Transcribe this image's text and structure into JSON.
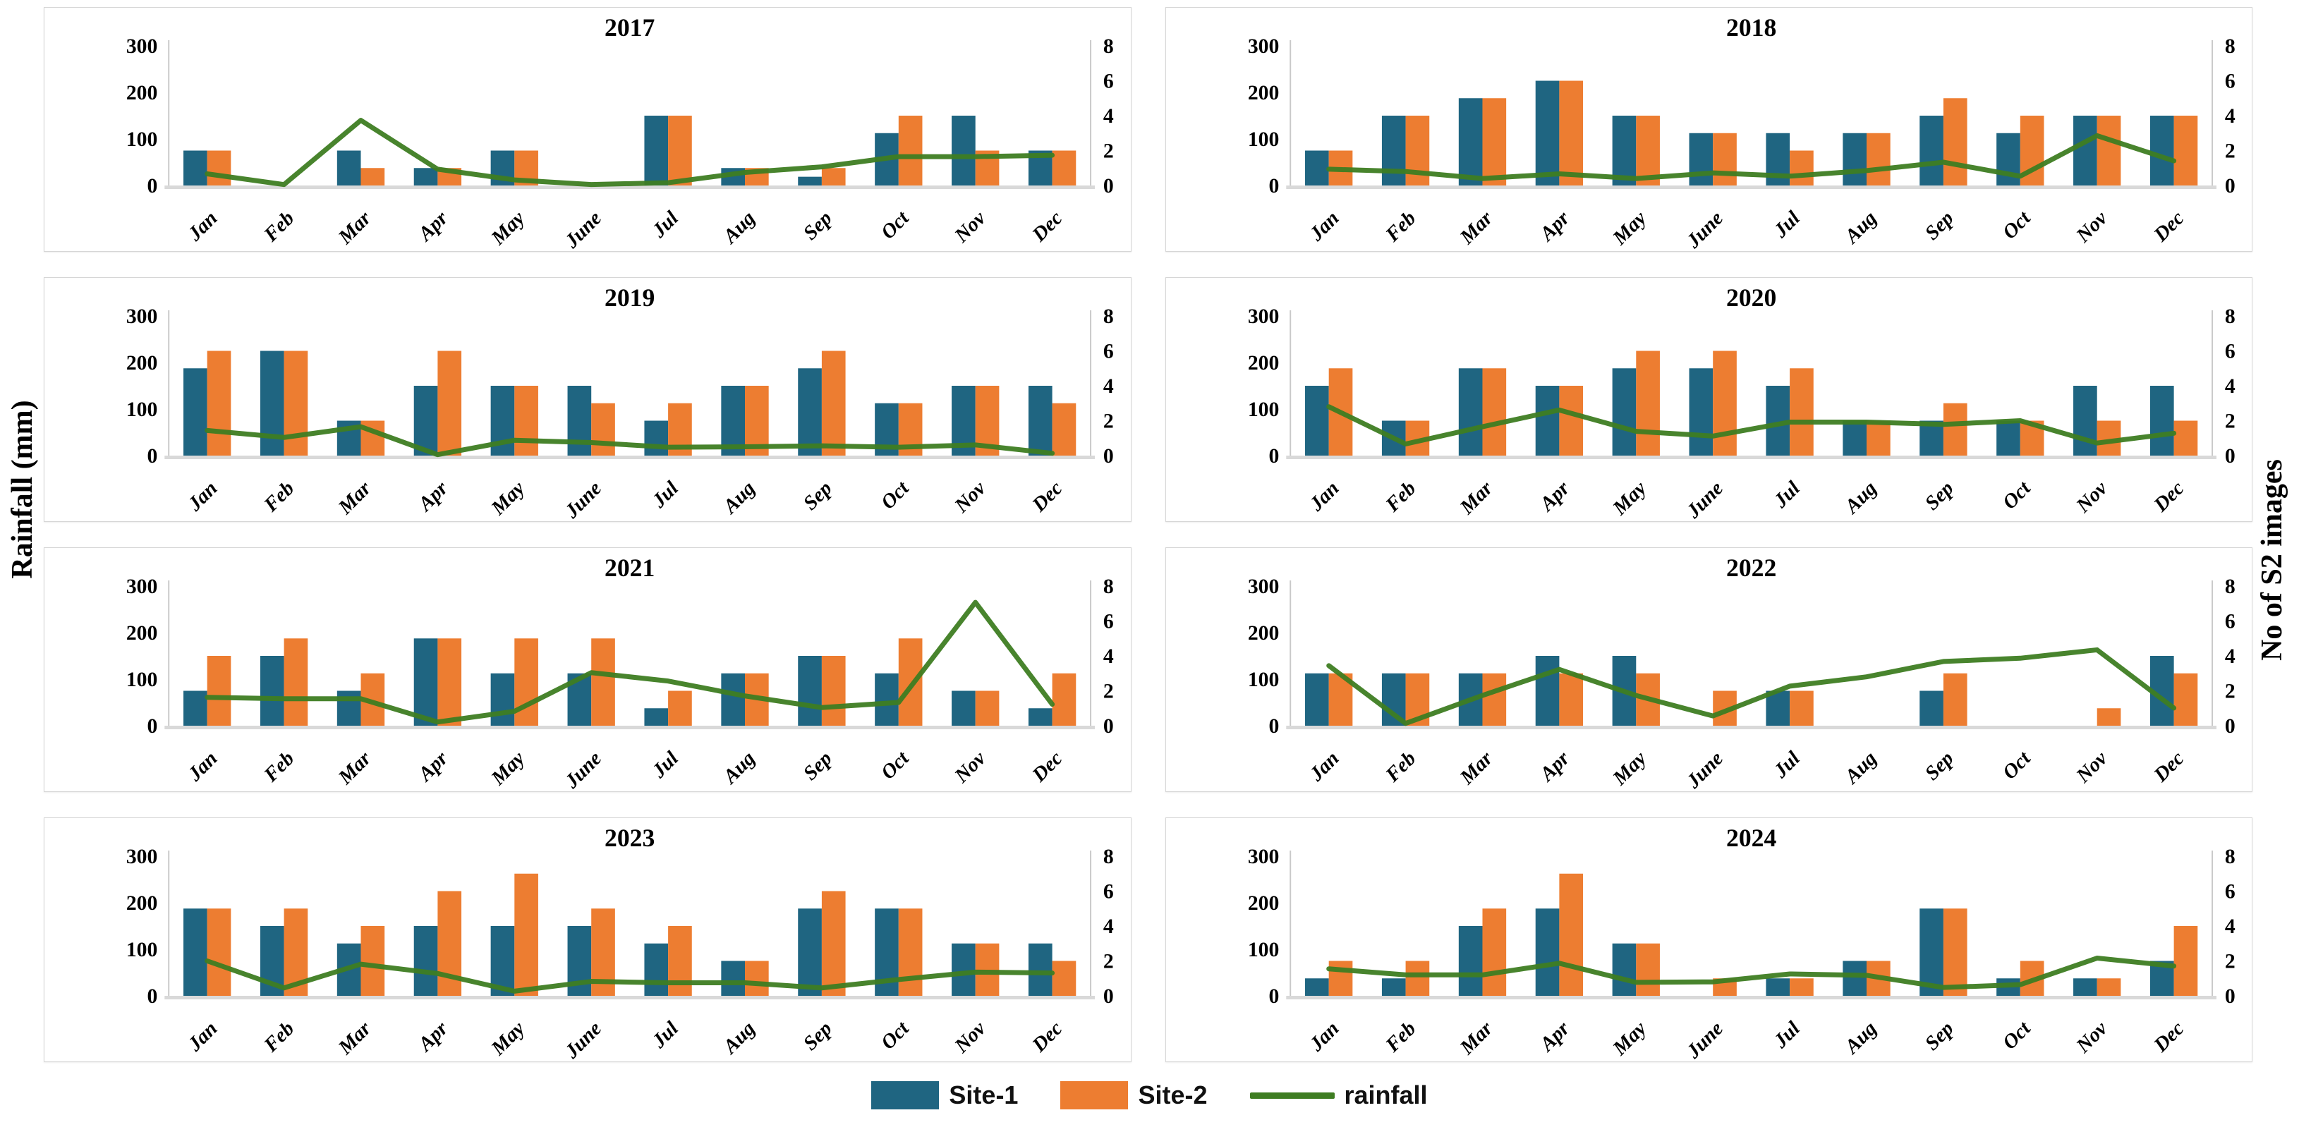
{
  "figure": {
    "left_axis_label": "Rainfall (mm)",
    "right_axis_label": "No of S2 images",
    "grid": "off",
    "legend_position": "bottom-center"
  },
  "colors": {
    "site1": "#1F6581",
    "site2": "#ED7D31",
    "rainfall": "#3E7D22",
    "axis_line": "#c9c9c9",
    "baseline": "#d9d9d9",
    "text": "#000000"
  },
  "legend": {
    "site1_label": "Site-1",
    "site2_label": "Site-2",
    "rainfall_label": "rainfall"
  },
  "months": [
    "Jan",
    "Feb",
    "Mar",
    "Apr",
    "May",
    "June",
    "Jul",
    "Aug",
    "Sep",
    "Oct",
    "Nov",
    "Dec"
  ],
  "left_axis": {
    "ticks": [
      0,
      100,
      200,
      300
    ],
    "max": 300
  },
  "right_axis": {
    "ticks": [
      0,
      2,
      4,
      6,
      8
    ],
    "max": 8
  },
  "chart_data": [
    {
      "type": "bar",
      "title": "2017",
      "categories": [
        "Jan",
        "Feb",
        "Mar",
        "Apr",
        "May",
        "June",
        "Jul",
        "Aug",
        "Sep",
        "Oct",
        "Nov",
        "Dec"
      ],
      "left_ylim": [
        0,
        300
      ],
      "right_ylim": [
        0,
        8
      ],
      "series": [
        {
          "name": "Site-1",
          "kind": "bar",
          "axis": "right",
          "values": [
            2,
            0,
            2,
            1,
            2,
            0,
            4,
            1,
            0.5,
            3,
            4,
            2
          ]
        },
        {
          "name": "Site-2",
          "kind": "bar",
          "axis": "right",
          "values": [
            2,
            0,
            1,
            1,
            2,
            0,
            4,
            1,
            1,
            4,
            2,
            2
          ]
        },
        {
          "name": "rainfall",
          "kind": "line",
          "axis": "left",
          "values": [
            25,
            2,
            140,
            35,
            12,
            2,
            6,
            28,
            40,
            62,
            62,
            65
          ]
        }
      ]
    },
    {
      "type": "bar",
      "title": "2018",
      "categories": [
        "Jan",
        "Feb",
        "Mar",
        "Apr",
        "May",
        "June",
        "Jul",
        "Aug",
        "Sep",
        "Oct",
        "Nov",
        "Dec"
      ],
      "left_ylim": [
        0,
        300
      ],
      "right_ylim": [
        0,
        8
      ],
      "series": [
        {
          "name": "Site-1",
          "kind": "bar",
          "axis": "right",
          "values": [
            2,
            4,
            5,
            6,
            4,
            3,
            3,
            3,
            4,
            3,
            4,
            4
          ]
        },
        {
          "name": "Site-2",
          "kind": "bar",
          "axis": "right",
          "values": [
            2,
            4,
            5,
            6,
            4,
            3,
            2,
            3,
            5,
            4,
            4,
            4
          ]
        },
        {
          "name": "rainfall",
          "kind": "line",
          "axis": "left",
          "values": [
            35,
            30,
            15,
            25,
            15,
            27,
            20,
            32,
            50,
            20,
            107,
            53
          ]
        }
      ]
    },
    {
      "type": "bar",
      "title": "2019",
      "categories": [
        "Jan",
        "Feb",
        "Mar",
        "Apr",
        "May",
        "June",
        "Jul",
        "Aug",
        "Sep",
        "Oct",
        "Nov",
        "Dec"
      ],
      "left_ylim": [
        0,
        300
      ],
      "right_ylim": [
        0,
        8
      ],
      "series": [
        {
          "name": "Site-1",
          "kind": "bar",
          "axis": "right",
          "values": [
            5,
            6,
            2,
            4,
            4,
            4,
            2,
            4,
            5,
            3,
            4,
            4
          ]
        },
        {
          "name": "Site-2",
          "kind": "bar",
          "axis": "right",
          "values": [
            6,
            6,
            2,
            6,
            4,
            3,
            3,
            4,
            6,
            3,
            4,
            3
          ]
        },
        {
          "name": "rainfall",
          "kind": "line",
          "axis": "left",
          "values": [
            54,
            39,
            62,
            2,
            33,
            28,
            18,
            19,
            21,
            18,
            23,
            5
          ]
        }
      ]
    },
    {
      "type": "bar",
      "title": "2020",
      "categories": [
        "Jan",
        "Feb",
        "Mar",
        "Apr",
        "May",
        "June",
        "Jul",
        "Aug",
        "Sep",
        "Oct",
        "Nov",
        "Dec"
      ],
      "left_ylim": [
        0,
        300
      ],
      "right_ylim": [
        0,
        8
      ],
      "series": [
        {
          "name": "Site-1",
          "kind": "bar",
          "axis": "right",
          "values": [
            4,
            2,
            5,
            4,
            5,
            5,
            4,
            2,
            2,
            2,
            4,
            4
          ]
        },
        {
          "name": "Site-2",
          "kind": "bar",
          "axis": "right",
          "values": [
            5,
            2,
            5,
            4,
            6,
            6,
            5,
            2,
            3,
            2,
            2,
            2
          ]
        },
        {
          "name": "rainfall",
          "kind": "line",
          "axis": "left",
          "values": [
            105,
            25,
            62,
            98,
            52,
            42,
            72,
            72,
            67,
            75,
            27,
            48
          ]
        }
      ]
    },
    {
      "type": "bar",
      "title": "2021",
      "categories": [
        "Jan",
        "Feb",
        "Mar",
        "Apr",
        "May",
        "June",
        "Jul",
        "Aug",
        "Sep",
        "Oct",
        "Nov",
        "Dec"
      ],
      "left_ylim": [
        0,
        300
      ],
      "right_ylim": [
        0,
        8
      ],
      "series": [
        {
          "name": "Site-1",
          "kind": "bar",
          "axis": "right",
          "values": [
            2,
            4,
            2,
            5,
            3,
            3,
            1,
            3,
            4,
            3,
            2,
            1
          ]
        },
        {
          "name": "Site-2",
          "kind": "bar",
          "axis": "right",
          "values": [
            4,
            5,
            3,
            5,
            5,
            5,
            2,
            3,
            4,
            5,
            2,
            3
          ]
        },
        {
          "name": "rainfall",
          "kind": "line",
          "axis": "left",
          "values": [
            61,
            58,
            58,
            8,
            31,
            114,
            96,
            64,
            39,
            50,
            265,
            46
          ]
        }
      ]
    },
    {
      "type": "bar",
      "title": "2022",
      "categories": [
        "Jan",
        "Feb",
        "Mar",
        "Apr",
        "May",
        "June",
        "Jul",
        "Aug",
        "Sep",
        "Oct",
        "Nov",
        "Dec"
      ],
      "left_ylim": [
        0,
        300
      ],
      "right_ylim": [
        0,
        8
      ],
      "series": [
        {
          "name": "Site-1",
          "kind": "bar",
          "axis": "right",
          "values": [
            3,
            3,
            3,
            4,
            4,
            0,
            2,
            0,
            2,
            0,
            0,
            4
          ]
        },
        {
          "name": "Site-2",
          "kind": "bar",
          "axis": "right",
          "values": [
            3,
            3,
            3,
            3,
            3,
            2,
            2,
            0,
            3,
            0,
            1,
            3
          ]
        },
        {
          "name": "rainfall",
          "kind": "line",
          "axis": "left",
          "values": [
            129,
            5,
            65,
            121,
            65,
            21,
            85,
            105,
            138,
            145,
            163,
            38
          ]
        }
      ]
    },
    {
      "type": "bar",
      "title": "2023",
      "categories": [
        "Jan",
        "Feb",
        "Mar",
        "Apr",
        "May",
        "June",
        "Jul",
        "Aug",
        "Sep",
        "Oct",
        "Nov",
        "Dec"
      ],
      "left_ylim": [
        0,
        300
      ],
      "right_ylim": [
        0,
        8
      ],
      "series": [
        {
          "name": "Site-1",
          "kind": "bar",
          "axis": "right",
          "values": [
            5,
            4,
            3,
            4,
            4,
            4,
            3,
            2,
            5,
            5,
            3,
            3
          ]
        },
        {
          "name": "Site-2",
          "kind": "bar",
          "axis": "right",
          "values": [
            5,
            5,
            4,
            6,
            7,
            5,
            4,
            2,
            6,
            5,
            3,
            2
          ]
        },
        {
          "name": "rainfall",
          "kind": "line",
          "axis": "left",
          "values": [
            75,
            17,
            68,
            48,
            10,
            31,
            28,
            28,
            17,
            35,
            51,
            49
          ]
        }
      ]
    },
    {
      "type": "bar",
      "title": "2024",
      "categories": [
        "Jan",
        "Feb",
        "Mar",
        "Apr",
        "May",
        "June",
        "Jul",
        "Aug",
        "Sep",
        "Oct",
        "Nov",
        "Dec"
      ],
      "left_ylim": [
        0,
        300
      ],
      "right_ylim": [
        0,
        8
      ],
      "series": [
        {
          "name": "Site-1",
          "kind": "bar",
          "axis": "right",
          "values": [
            1,
            1,
            4,
            5,
            3,
            0,
            1,
            2,
            5,
            1,
            1,
            2
          ]
        },
        {
          "name": "Site-2",
          "kind": "bar",
          "axis": "right",
          "values": [
            2,
            2,
            5,
            7,
            3,
            1,
            1,
            2,
            5,
            2,
            1,
            4
          ]
        },
        {
          "name": "rainfall",
          "kind": "line",
          "axis": "left",
          "values": [
            58,
            45,
            45,
            70,
            29,
            30,
            47,
            44,
            18,
            24,
            81,
            64
          ]
        }
      ]
    }
  ]
}
